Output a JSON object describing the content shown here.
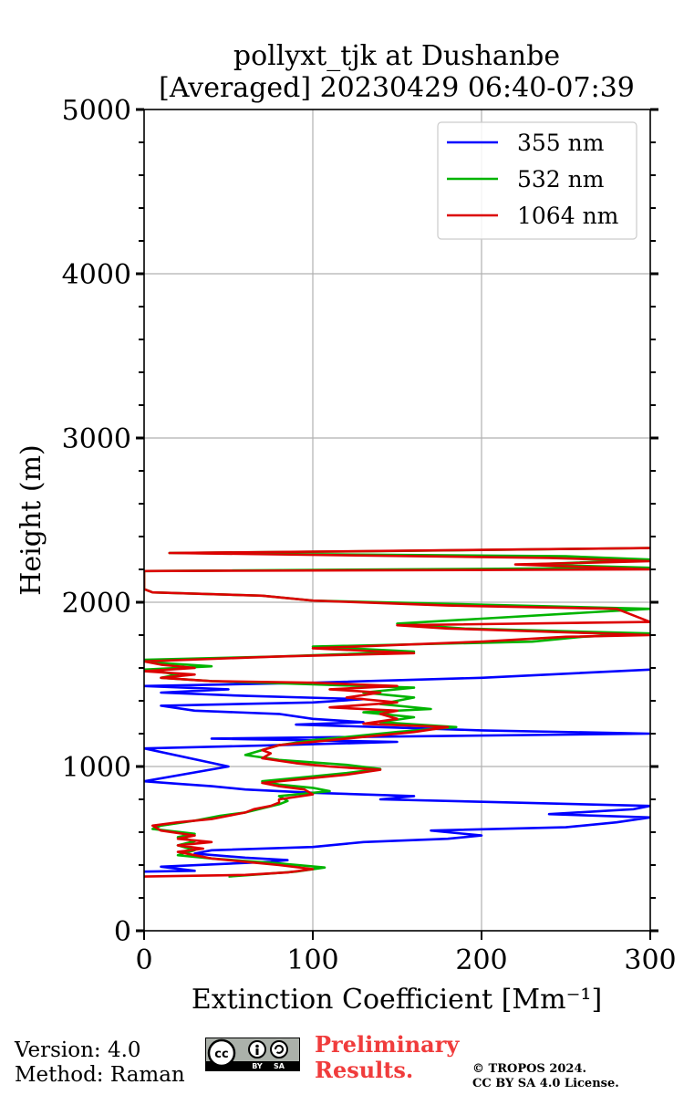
{
  "chart_data": {
    "type": "line",
    "title": [
      "pollyxt_tjk at Dushanbe",
      "[Averaged] 20230429 06:40-07:39"
    ],
    "xlabel": "Extinction Coefficient [Mm⁻¹]",
    "ylabel": "Height (m)",
    "xlim": [
      0,
      300
    ],
    "ylim": [
      0,
      5000
    ],
    "xticks": [
      0,
      100,
      200,
      300
    ],
    "yticks": [
      0,
      1000,
      2000,
      3000,
      4000,
      5000
    ],
    "yminor_step": 200,
    "grid": true,
    "legend_position": "top-right",
    "series": [
      {
        "name": "355 nm",
        "color": "#0000ff",
        "points": [
          [
            0,
            360
          ],
          [
            30,
            365
          ],
          [
            10,
            390
          ],
          [
            75,
            420
          ],
          [
            85,
            430
          ],
          [
            60,
            445
          ],
          [
            30,
            470
          ],
          [
            40,
            490
          ],
          [
            100,
            510
          ],
          [
            130,
            540
          ],
          [
            180,
            560
          ],
          [
            200,
            580
          ],
          [
            170,
            610
          ],
          [
            250,
            630
          ],
          [
            280,
            660
          ],
          [
            300,
            690
          ],
          [
            240,
            710
          ],
          [
            290,
            740
          ],
          [
            300,
            760
          ],
          [
            220,
            780
          ],
          [
            140,
            800
          ],
          [
            160,
            820
          ],
          [
            100,
            840
          ],
          [
            60,
            860
          ],
          [
            40,
            880
          ],
          [
            20,
            895
          ],
          [
            0,
            910
          ],
          [
            50,
            1000
          ],
          [
            0,
            1110
          ],
          [
            80,
            1130
          ],
          [
            150,
            1150
          ],
          [
            40,
            1170
          ],
          [
            300,
            1200
          ],
          [
            200,
            1220
          ],
          [
            140,
            1240
          ],
          [
            90,
            1255
          ],
          [
            130,
            1270
          ],
          [
            100,
            1290
          ],
          [
            80,
            1320
          ],
          [
            30,
            1340
          ],
          [
            10,
            1370
          ],
          [
            100,
            1390
          ],
          [
            130,
            1410
          ],
          [
            60,
            1430
          ],
          [
            10,
            1450
          ],
          [
            50,
            1470
          ],
          [
            0,
            1490
          ],
          [
            100,
            1510
          ],
          [
            200,
            1540
          ],
          [
            300,
            1590
          ]
        ]
      },
      {
        "name": "532 nm",
        "color": "#00b400",
        "points": [
          [
            50,
            330
          ],
          [
            70,
            345
          ],
          [
            90,
            360
          ],
          [
            107,
            385
          ],
          [
            80,
            410
          ],
          [
            60,
            425
          ],
          [
            40,
            440
          ],
          [
            20,
            460
          ],
          [
            30,
            490
          ],
          [
            20,
            520
          ],
          [
            30,
            545
          ],
          [
            20,
            570
          ],
          [
            30,
            590
          ],
          [
            5,
            620
          ],
          [
            10,
            640
          ],
          [
            30,
            670
          ],
          [
            45,
            700
          ],
          [
            60,
            720
          ],
          [
            70,
            745
          ],
          [
            80,
            770
          ],
          [
            85,
            790
          ],
          [
            80,
            820
          ],
          [
            110,
            850
          ],
          [
            100,
            870
          ],
          [
            80,
            890
          ],
          [
            70,
            910
          ],
          [
            100,
            940
          ],
          [
            120,
            960
          ],
          [
            140,
            985
          ],
          [
            120,
            1010
          ],
          [
            80,
            1040
          ],
          [
            60,
            1070
          ],
          [
            70,
            1100
          ],
          [
            80,
            1130
          ],
          [
            100,
            1160
          ],
          [
            130,
            1190
          ],
          [
            150,
            1210
          ],
          [
            185,
            1240
          ],
          [
            140,
            1270
          ],
          [
            160,
            1300
          ],
          [
            130,
            1330
          ],
          [
            170,
            1350
          ],
          [
            140,
            1380
          ],
          [
            160,
            1420
          ],
          [
            130,
            1450
          ],
          [
            160,
            1480
          ],
          [
            100,
            1500
          ],
          [
            40,
            1520
          ],
          [
            10,
            1540
          ],
          [
            20,
            1560
          ],
          [
            0,
            1590
          ],
          [
            40,
            1610
          ],
          [
            10,
            1630
          ],
          [
            0,
            1650
          ],
          [
            80,
            1670
          ],
          [
            160,
            1700
          ],
          [
            100,
            1730
          ],
          [
            230,
            1760
          ],
          [
            260,
            1790
          ],
          [
            300,
            1810
          ],
          [
            190,
            1840
          ],
          [
            150,
            1870
          ],
          [
            200,
            1900
          ],
          [
            300,
            1960
          ],
          [
            180,
            1990
          ],
          [
            100,
            2010
          ],
          [
            70,
            2040
          ],
          [
            5,
            2060
          ],
          [
            0,
            2080
          ],
          [
            0,
            2190
          ],
          [
            300,
            2210
          ],
          [
            230,
            2230
          ],
          [
            300,
            2260
          ],
          [
            250,
            2280
          ],
          [
            15,
            2300
          ],
          [
            130,
            2310
          ],
          [
            300,
            2330
          ]
        ]
      },
      {
        "name": "1064 nm",
        "color": "#dc0000",
        "points": [
          [
            0,
            330
          ],
          [
            60,
            340
          ],
          [
            85,
            355
          ],
          [
            100,
            375
          ],
          [
            80,
            400
          ],
          [
            60,
            420
          ],
          [
            40,
            440
          ],
          [
            30,
            460
          ],
          [
            20,
            480
          ],
          [
            35,
            500
          ],
          [
            20,
            520
          ],
          [
            40,
            540
          ],
          [
            20,
            560
          ],
          [
            30,
            580
          ],
          [
            10,
            610
          ],
          [
            5,
            640
          ],
          [
            20,
            660
          ],
          [
            40,
            680
          ],
          [
            50,
            700
          ],
          [
            60,
            720
          ],
          [
            65,
            740
          ],
          [
            75,
            760
          ],
          [
            80,
            780
          ],
          [
            80,
            800
          ],
          [
            100,
            830
          ],
          [
            95,
            860
          ],
          [
            80,
            880
          ],
          [
            70,
            900
          ],
          [
            90,
            920
          ],
          [
            120,
            950
          ],
          [
            140,
            980
          ],
          [
            110,
            1000
          ],
          [
            90,
            1020
          ],
          [
            70,
            1050
          ],
          [
            75,
            1080
          ],
          [
            70,
            1100
          ],
          [
            80,
            1130
          ],
          [
            110,
            1160
          ],
          [
            140,
            1190
          ],
          [
            160,
            1210
          ],
          [
            180,
            1240
          ],
          [
            130,
            1260
          ],
          [
            150,
            1290
          ],
          [
            140,
            1320
          ],
          [
            150,
            1340
          ],
          [
            110,
            1360
          ],
          [
            150,
            1390
          ],
          [
            120,
            1420
          ],
          [
            140,
            1450
          ],
          [
            110,
            1470
          ],
          [
            150,
            1490
          ],
          [
            100,
            1510
          ],
          [
            40,
            1520
          ],
          [
            10,
            1540
          ],
          [
            30,
            1560
          ],
          [
            0,
            1580
          ],
          [
            30,
            1600
          ],
          [
            10,
            1620
          ],
          [
            0,
            1640
          ],
          [
            80,
            1670
          ],
          [
            160,
            1690
          ],
          [
            100,
            1720
          ],
          [
            200,
            1760
          ],
          [
            250,
            1790
          ],
          [
            300,
            1800
          ],
          [
            180,
            1840
          ],
          [
            150,
            1860
          ],
          [
            300,
            1880
          ],
          [
            280,
            1960
          ],
          [
            180,
            1980
          ],
          [
            100,
            2010
          ],
          [
            70,
            2040
          ],
          [
            5,
            2060
          ],
          [
            0,
            2080
          ],
          [
            0,
            2190
          ],
          [
            300,
            2200
          ],
          [
            220,
            2230
          ],
          [
            300,
            2250
          ],
          [
            240,
            2270
          ],
          [
            15,
            2300
          ],
          [
            120,
            2310
          ],
          [
            300,
            2330
          ]
        ]
      }
    ]
  },
  "footer": {
    "version_line": "Version: 4.0",
    "method_line": "Method: Raman",
    "preliminary_line1": "Preliminary",
    "preliminary_line2": "Results.",
    "copyright_line1": "© TROPOS 2024.",
    "copyright_line2": "CC BY SA 4.0 License.",
    "license_badge_cc": "cc",
    "license_badge_by": "BY",
    "license_badge_sa": "SA"
  }
}
